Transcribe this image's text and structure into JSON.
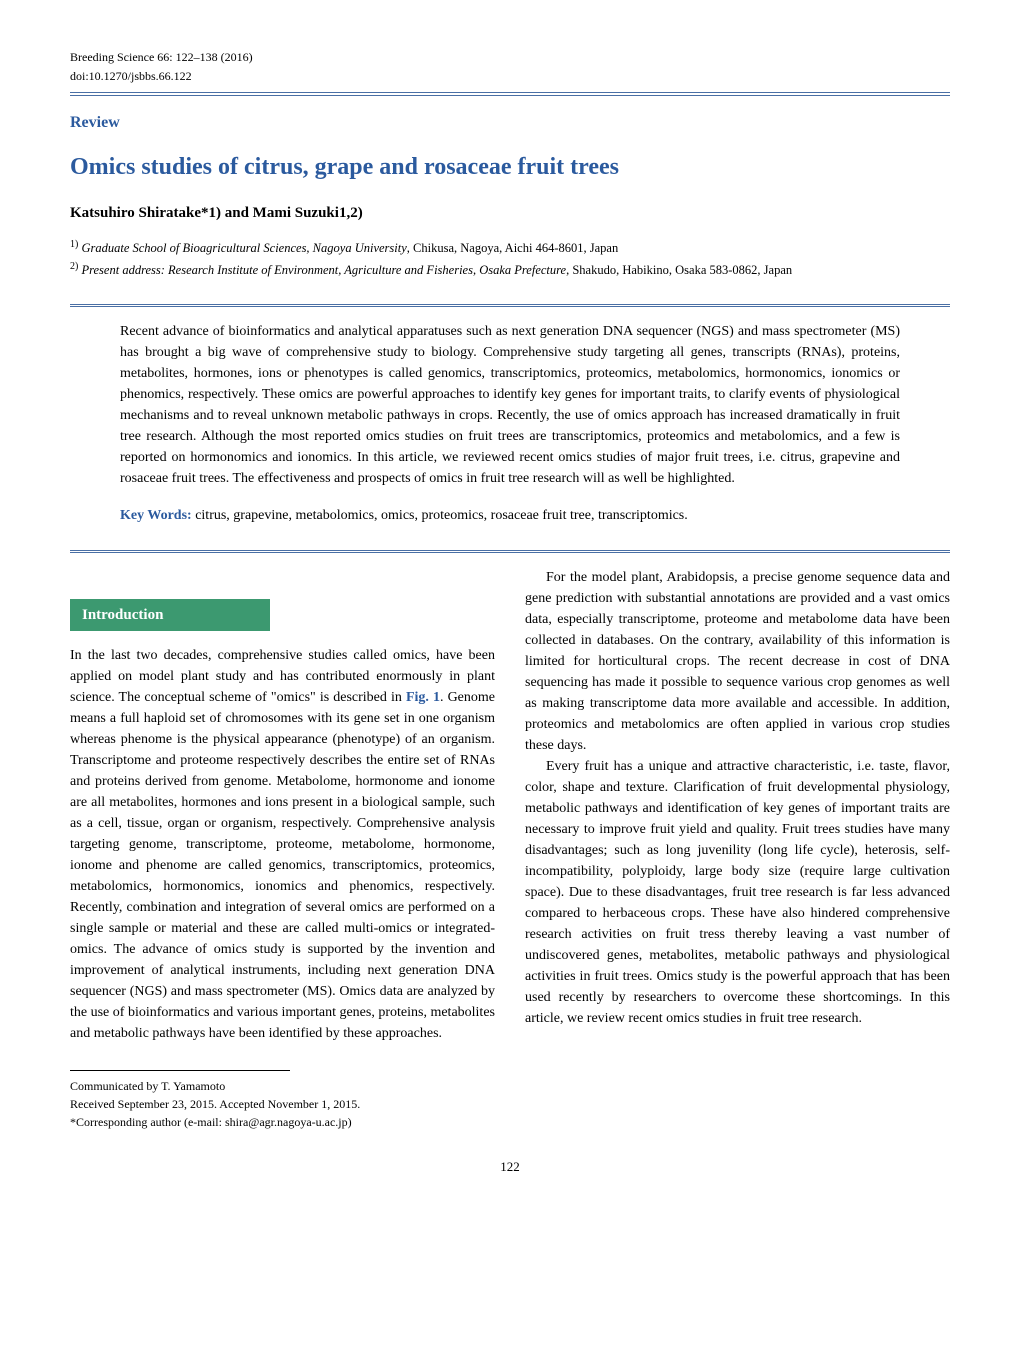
{
  "journal": {
    "citation": "Breeding Science 66: 122–138 (2016)",
    "doi": "doi:10.1270/jsbbs.66.122"
  },
  "review_label": "Review",
  "title": "Omics studies of citrus, grape and rosaceae fruit trees",
  "authors": "Katsuhiro Shiratake*1) and Mami Suzuki1,2)",
  "affiliations": [
    {
      "num": "1)",
      "label": "Graduate School of Bioagricultural Sciences, Nagoya University",
      "address": ", Chikusa, Nagoya, Aichi 464-8601, Japan"
    },
    {
      "num": "2)",
      "label": "Present address: Research Institute of Environment, Agriculture and Fisheries, Osaka Prefecture",
      "address": ", Shakudo, Habikino, Osaka 583-0862, Japan"
    }
  ],
  "abstract": "Recent advance of bioinformatics and analytical apparatuses such as next generation DNA sequencer (NGS) and mass spectrometer (MS) has brought a big wave of comprehensive study to biology. Comprehensive study targeting all genes, transcripts (RNAs), proteins, metabolites, hormones, ions or phenotypes is called genomics, transcriptomics, proteomics, metabolomics, hormonomics, ionomics or phenomics, respectively. These omics are powerful approaches to identify key genes for important traits, to clarify events of physiological mechanisms and to reveal unknown metabolic pathways in crops. Recently, the use of omics approach has increased dramatically in fruit tree research. Although the most reported omics studies on fruit trees are transcriptomics, proteomics and metabolomics, and a few is reported on hormonomics and ionomics. In this article, we reviewed recent omics studies of major fruit trees, i.e. citrus, grapevine and rosaceae fruit trees. The effectiveness and prospects of omics in fruit tree research will as well be highlighted.",
  "keywords_label": "Key Words:",
  "keywords": " citrus, grapevine, metabolomics, omics, proteomics, rosaceae fruit tree, transcriptomics.",
  "section_heading": "Introduction",
  "body": {
    "p1a": "In the last two decades, comprehensive studies called omics, have been applied on model plant study and has contributed enormously in plant science. The conceptual scheme of \"omics\" is described in ",
    "fig_ref": "Fig. 1",
    "p1b": ". Genome means a full haploid set of chromosomes with its gene set in one organism whereas phenome is the physical appearance (phenotype) of an organism. Transcriptome and proteome respectively describes the entire set of RNAs and proteins derived from genome. Metabolome, hormonome and ionome are all metabolites, hormones and ions present in a biological sample, such as a cell, tissue, organ or organism, respectively. Comprehensive analysis targeting genome, transcriptome, proteome, metabolome, hormonome, ionome and phenome are called genomics, transcriptomics, proteomics, metabolomics, hormonomics, ionomics and phenomics, respectively. Recently, combination and integration of several omics are performed on a single sample or material and these are called multi-omics or integrated-omics. The advance of omics study is supported by the invention and improvement of analytical instruments, including next generation DNA sequencer (NGS) and mass spectrometer (MS). Omics data are analyzed by the use of bioinformatics and various important genes, proteins, metabolites and metabolic pathways have been identified by these approaches.",
    "p2": "For the model plant, Arabidopsis, a precise genome sequence data and gene prediction with substantial annotations are provided and a vast omics data, especially transcriptome, proteome and metabolome data have been collected in databases. On the contrary, availability of this information is limited for horticultural crops. The recent decrease in cost of DNA sequencing has made it possible to sequence various crop genomes as well as making transcriptome data more available and accessible. In addition, proteomics and metabolomics are often applied in various crop studies these days.",
    "p3": "Every fruit has a unique and attractive characteristic, i.e. taste, flavor, color, shape and texture. Clarification of fruit developmental physiology, metabolic pathways and identification of key genes of important traits are necessary to improve fruit yield and quality. Fruit trees studies have many disadvantages; such as long juvenility (long life cycle), heterosis, self-incompatibility, polyploidy, large body size (require large cultivation space). Due to these disadvantages, fruit tree research is far less advanced compared to herbaceous crops. These have also hindered comprehensive research activities on fruit tress thereby leaving a vast number of undiscovered genes, metabolites, metabolic pathways and physiological activities in fruit trees. Omics study is the powerful approach that has been used recently by researchers to overcome these shortcomings. In this article, we review recent omics studies in fruit tree research."
  },
  "footer": {
    "communicated": "Communicated by T. Yamamoto",
    "received": "Received September 23, 2015.  Accepted November 1, 2015.",
    "corresponding": "*Corresponding author (e-mail:  shira@agr.nagoya-u.ac.jp)"
  },
  "page_number": "122",
  "colors": {
    "heading_blue": "#2b5a9e",
    "rule_blue": "#4a6fa5",
    "section_green": "#3c9970",
    "text": "#000000",
    "bg": "#ffffff"
  },
  "fonts": {
    "body_size_pt": 10.5,
    "title_size_pt": 18,
    "header_small_pt": 9
  }
}
